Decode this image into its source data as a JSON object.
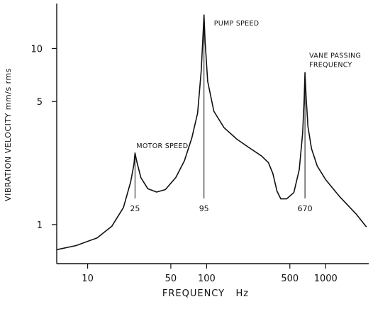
{
  "chart_data": {
    "type": "line",
    "title": "",
    "xlabel": "FREQUENCY   Hz",
    "ylabel": "VIBRATION VELOCITY mm/s    rms",
    "x_scale": "log",
    "y_scale": "log",
    "xlim": [
      5.5,
      2300
    ],
    "ylim": [
      0.6,
      18
    ],
    "x_ticks": [
      10,
      50,
      100,
      500,
      1000
    ],
    "x_tick_labels": [
      "10",
      "50",
      "100",
      "500",
      "1000"
    ],
    "y_ticks": [
      1,
      5,
      10
    ],
    "y_tick_labels": [
      "1",
      "5",
      "10"
    ],
    "grid": false,
    "series": [
      {
        "x": [
          5.5,
          8,
          12,
          16,
          20,
          23,
          24.5,
          25,
          25.8,
          28,
          32,
          38,
          45,
          55,
          65,
          75,
          84,
          90,
          93,
          95,
          97,
          102,
          115,
          140,
          180,
          230,
          290,
          330,
          360,
          390,
          420,
          470,
          540,
          600,
          640,
          660,
          670,
          685,
          710,
          760,
          850,
          1000,
          1300,
          1800,
          2200
        ],
        "y": [
          0.72,
          0.76,
          0.84,
          0.98,
          1.25,
          1.75,
          2.2,
          2.55,
          2.3,
          1.85,
          1.6,
          1.53,
          1.58,
          1.85,
          2.3,
          3.1,
          4.3,
          7.5,
          11.5,
          15.5,
          11,
          6.5,
          4.4,
          3.55,
          3.05,
          2.72,
          2.45,
          2.25,
          1.95,
          1.55,
          1.4,
          1.4,
          1.52,
          2.05,
          3.3,
          5.2,
          7.3,
          5.3,
          3.6,
          2.7,
          2.15,
          1.8,
          1.45,
          1.15,
          0.97
        ]
      }
    ],
    "annotations": [
      {
        "text": "MOTOR SPEED",
        "x": 25,
        "y": 2.55
      },
      {
        "text": "PUMP SPEED",
        "x": 95,
        "y": 15.5
      },
      {
        "text": "VANE PASSING\nFREQUENCY",
        "x": 670,
        "y": 7.3
      }
    ],
    "peak_markers": [
      {
        "x": 25,
        "label": "25"
      },
      {
        "x": 95,
        "label": "95"
      },
      {
        "x": 670,
        "label": "670"
      }
    ]
  }
}
